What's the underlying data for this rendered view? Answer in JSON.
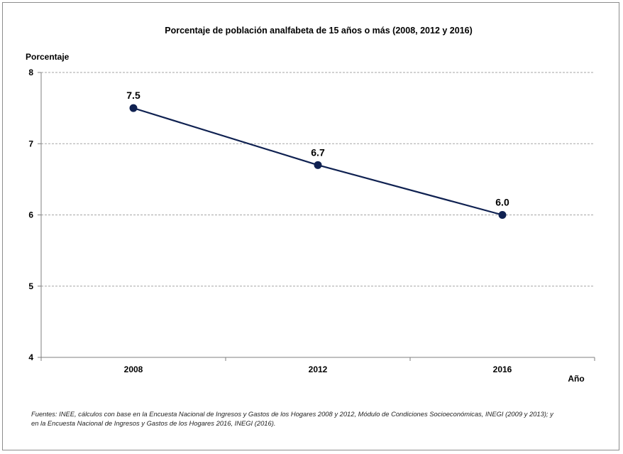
{
  "chart_data": {
    "type": "line",
    "title": "Porcentaje de población analfabeta de 15 años o más (2008, 2012 y 2016)",
    "ylabel": "Porcentaje",
    "xlabel": "Año",
    "categories": [
      "2008",
      "2012",
      "2016"
    ],
    "series": [
      {
        "values": [
          7.5,
          6.7,
          6.0
        ],
        "labels": [
          "7.5",
          "6.7",
          "6.0"
        ],
        "color": "#0f2151"
      }
    ],
    "ylim": [
      4,
      8
    ],
    "yticks": [
      4,
      5,
      6,
      7,
      8
    ],
    "grid": true,
    "legend": false
  },
  "footnote": {
    "line1": "Fuentes: INEE, cálculos con base en la Encuesta Nacional de Ingresos y Gastos de los Hogares 2008 y 2012, Módulo de Condiciones Socioeconómicas, INEGI (2009 y 2013); y",
    "line2": "en la Encuesta Nacional de Ingresos y Gastos de los Hogares 2016, INEGI (2016)."
  }
}
